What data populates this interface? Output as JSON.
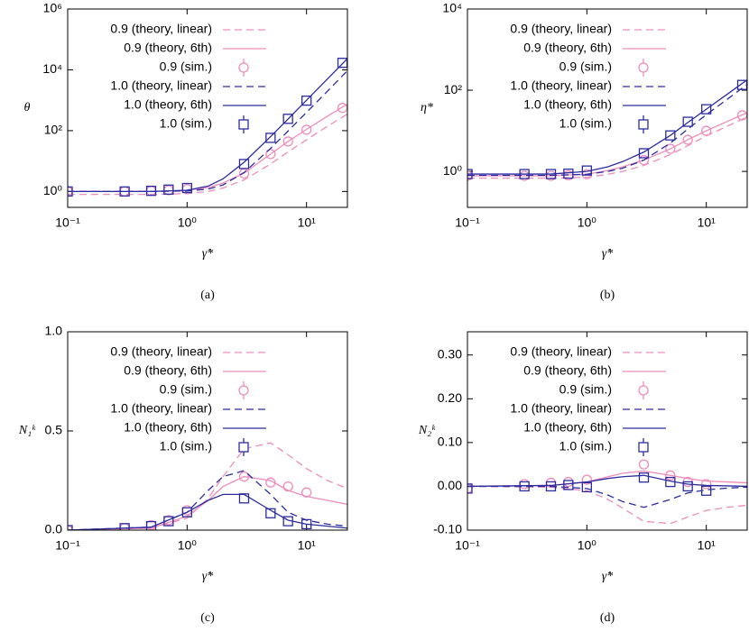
{
  "chart_data": [
    {
      "type": "line",
      "xlabel": "γ̇*",
      "ylabel": "θ",
      "caption": "(a)",
      "xscale": "log",
      "yscale": "log",
      "legend": "upper left",
      "xlim": [
        0.1,
        22
      ],
      "ylim": [
        0.3,
        1000000
      ],
      "xticks": [
        {
          "value": 0.1,
          "label": "10⁻¹"
        },
        {
          "value": 1,
          "label": "10⁰"
        },
        {
          "value": 10,
          "label": "10¹"
        }
      ],
      "yticks": [
        {
          "value": 1,
          "label": "10⁰"
        },
        {
          "value": 100,
          "label": "10²"
        },
        {
          "value": 10000,
          "label": "10⁴"
        },
        {
          "value": 1000000,
          "label": "10⁶"
        }
      ],
      "series": [
        {
          "name": "0.9 (theory, linear)",
          "color": "#ee8cba",
          "style": "dashed",
          "x": [
            0.1,
            0.5,
            1,
            1.5,
            2,
            3,
            5,
            7,
            10,
            15,
            22
          ],
          "values": [
            0.8,
            0.8,
            0.85,
            1.0,
            1.3,
            2.4,
            8,
            20,
            50,
            140,
            350
          ]
        },
        {
          "name": "0.9 (theory, 6th)",
          "color": "#ee8cba",
          "style": "solid",
          "x": [
            0.1,
            0.5,
            1,
            1.5,
            2,
            3,
            5,
            7,
            10,
            15,
            22
          ],
          "values": [
            1,
            1,
            1.1,
            1.35,
            1.9,
            4,
            17,
            44,
            110,
            300,
            750
          ]
        },
        {
          "name": "0.9 (sim.)",
          "color": "#ee8cba",
          "style": "circle",
          "x": [
            0.1,
            0.3,
            0.5,
            0.7,
            1,
            3,
            5,
            7,
            10,
            20
          ],
          "values": [
            1.0,
            1.0,
            1.05,
            1.1,
            1.2,
            3.9,
            17,
            44,
            107,
            560
          ]
        },
        {
          "name": "1.0 (theory, linear)",
          "color": "#2c2ca0",
          "style": "dashed",
          "x": [
            0.1,
            0.5,
            1,
            1.5,
            2,
            3,
            5,
            7,
            10,
            15,
            22
          ],
          "values": [
            1.0,
            1.0,
            1.04,
            1.2,
            1.64,
            4.2,
            26,
            97,
            401,
            2000,
            9370
          ]
        },
        {
          "name": "1.0 (theory, 6th)",
          "color": "#2c2ca0",
          "style": "solid",
          "x": [
            0.1,
            0.5,
            1,
            1.5,
            2,
            3,
            5,
            7,
            10,
            15,
            22
          ],
          "values": [
            1.0,
            1.0,
            1.1,
            1.5,
            2.6,
            9.1,
            63.5,
            241,
            1001,
            5064,
            23400
          ]
        },
        {
          "name": "1.0 (sim.)",
          "color": "#2c2ca0",
          "style": "square",
          "x": [
            0.1,
            0.3,
            0.5,
            0.7,
            1,
            3,
            5,
            7,
            10,
            20
          ],
          "values": [
            1.0,
            1.0,
            1.05,
            1.15,
            1.3,
            8,
            58,
            245,
            970,
            17000
          ]
        }
      ]
    },
    {
      "type": "line",
      "xlabel": "γ̇*",
      "ylabel": "η*",
      "caption": "(b)",
      "xscale": "log",
      "yscale": "log",
      "legend": "upper left",
      "xlim": [
        0.1,
        22
      ],
      "ylim": [
        0.13,
        10000
      ],
      "xticks": [
        {
          "value": 0.1,
          "label": "10⁻¹"
        },
        {
          "value": 1,
          "label": "10⁰"
        },
        {
          "value": 10,
          "label": "10¹"
        }
      ],
      "yticks": [
        {
          "value": 1,
          "label": "10⁰"
        },
        {
          "value": 100,
          "label": "10²"
        },
        {
          "value": 10000,
          "label": "10⁴"
        }
      ],
      "series": [
        {
          "name": "0.9 (theory, linear)",
          "color": "#ee8cba",
          "style": "dashed",
          "x": [
            0.1,
            0.5,
            1,
            1.5,
            2,
            3,
            5,
            7,
            10,
            15,
            22
          ],
          "values": [
            0.68,
            0.68,
            0.72,
            0.85,
            1.0,
            1.4,
            2.6,
            4.3,
            7.5,
            13,
            22
          ]
        },
        {
          "name": "0.9 (theory, 6th)",
          "color": "#ee8cba",
          "style": "solid",
          "x": [
            0.1,
            0.5,
            1,
            1.5,
            2,
            3,
            5,
            7,
            10,
            15,
            22
          ],
          "values": [
            0.78,
            0.78,
            0.85,
            1.05,
            1.3,
            1.9,
            3.6,
            6,
            10,
            17,
            28
          ]
        },
        {
          "name": "0.9 (sim.)",
          "color": "#ee8cba",
          "style": "circle",
          "x": [
            0.1,
            0.3,
            0.5,
            0.7,
            1,
            3,
            5,
            7,
            10,
            20
          ],
          "values": [
            0.78,
            0.78,
            0.78,
            0.8,
            0.85,
            1.9,
            3.6,
            6,
            10,
            24
          ]
        },
        {
          "name": "1.0 (theory, linear)",
          "color": "#2c2ca0",
          "style": "dashed",
          "x": [
            0.1,
            0.5,
            1,
            1.5,
            2,
            3,
            5,
            7,
            10,
            15,
            22
          ],
          "values": [
            0.8,
            0.8,
            0.85,
            1.0,
            1.2,
            1.9,
            5,
            11,
            25,
            60,
            140
          ]
        },
        {
          "name": "1.0 (theory, 6th)",
          "color": "#2c2ca0",
          "style": "solid",
          "x": [
            0.1,
            0.5,
            1,
            1.5,
            2,
            3,
            5,
            7,
            10,
            15,
            22
          ],
          "values": [
            0.86,
            0.86,
            1.0,
            1.3,
            1.75,
            3.0,
            7.7,
            16,
            34,
            80,
            180
          ]
        },
        {
          "name": "1.0 (sim.)",
          "color": "#2c2ca0",
          "style": "square",
          "x": [
            0.1,
            0.3,
            0.5,
            0.7,
            1,
            3,
            5,
            7,
            10,
            20
          ],
          "values": [
            0.86,
            0.86,
            0.86,
            0.88,
            1.05,
            2.8,
            7.7,
            16.7,
            34,
            135
          ]
        }
      ]
    },
    {
      "type": "line",
      "xlabel": "γ̇*",
      "ylabel": "N₁ᵏ",
      "caption": "(c)",
      "xscale": "log",
      "yscale": "linear",
      "legend": "upper left",
      "xlim": [
        0.1,
        22
      ],
      "ylim": [
        0,
        1
      ],
      "xticks": [
        {
          "value": 0.1,
          "label": "10⁻¹"
        },
        {
          "value": 1,
          "label": "10⁰"
        },
        {
          "value": 10,
          "label": "10¹"
        }
      ],
      "yticks": [
        {
          "value": 0,
          "label": "0.0"
        },
        {
          "value": 0.5,
          "label": "0.5"
        },
        {
          "value": 1,
          "label": "1.0"
        }
      ],
      "series": [
        {
          "name": "0.9 (theory, linear)",
          "color": "#ee8cba",
          "style": "dashed",
          "x": [
            0.1,
            0.5,
            1,
            1.5,
            2,
            3,
            5,
            7,
            10,
            15,
            22
          ],
          "values": [
            0,
            0.01,
            0.06,
            0.16,
            0.27,
            0.41,
            0.44,
            0.38,
            0.31,
            0.25,
            0.21
          ]
        },
        {
          "name": "0.9 (theory, 6th)",
          "color": "#ee8cba",
          "style": "solid",
          "x": [
            0.1,
            0.5,
            1,
            1.5,
            2,
            3,
            5,
            7,
            10,
            15,
            22
          ],
          "values": [
            0,
            0.01,
            0.07,
            0.15,
            0.22,
            0.27,
            0.25,
            0.2,
            0.17,
            0.15,
            0.13
          ]
        },
        {
          "name": "0.9 (sim.)",
          "color": "#ee8cba",
          "style": "circle",
          "x": [
            0.1,
            0.3,
            0.5,
            0.7,
            1,
            3,
            5,
            7,
            10
          ],
          "values": [
            0,
            0.01,
            0.025,
            0.05,
            0.1,
            0.27,
            0.24,
            0.22,
            0.19
          ]
        },
        {
          "name": "1.0 (theory, linear)",
          "color": "#2c2ca0",
          "style": "dashed",
          "x": [
            0.1,
            0.5,
            1,
            1.5,
            2,
            3,
            5,
            7,
            10,
            15,
            22
          ],
          "values": [
            0,
            0.015,
            0.09,
            0.2,
            0.27,
            0.3,
            0.18,
            0.09,
            0.05,
            0.03,
            0.02
          ]
        },
        {
          "name": "1.0 (theory, 6th)",
          "color": "#2c2ca0",
          "style": "solid",
          "x": [
            0.1,
            0.5,
            1,
            1.5,
            2,
            3,
            5,
            7,
            10,
            15,
            22
          ],
          "values": [
            0,
            0.015,
            0.09,
            0.15,
            0.18,
            0.18,
            0.1,
            0.05,
            0.03,
            0.02,
            0.01
          ]
        },
        {
          "name": "1.0 (sim.)",
          "color": "#2c2ca0",
          "style": "square",
          "x": [
            0.1,
            0.3,
            0.5,
            0.7,
            1,
            3,
            5,
            7,
            10
          ],
          "values": [
            0,
            0.01,
            0.02,
            0.045,
            0.09,
            0.16,
            0.085,
            0.045,
            0.03
          ]
        }
      ]
    },
    {
      "type": "line",
      "xlabel": "γ̇*",
      "ylabel": "N₂ᵏ",
      "caption": "(d)",
      "xscale": "log",
      "yscale": "linear",
      "legend": "upper left",
      "xlim": [
        0.1,
        22
      ],
      "ylim": [
        -0.1,
        0.353
      ],
      "xticks": [
        {
          "value": 0.1,
          "label": "10⁻¹"
        },
        {
          "value": 1,
          "label": "10⁰"
        },
        {
          "value": 10,
          "label": "10¹"
        }
      ],
      "yticks": [
        {
          "value": -0.1,
          "label": "-0.10"
        },
        {
          "value": 0,
          "label": "0.00"
        },
        {
          "value": 0.1,
          "label": "0.10"
        },
        {
          "value": 0.2,
          "label": "0.20"
        },
        {
          "value": 0.3,
          "label": "0.30"
        }
      ],
      "series": [
        {
          "name": "0.9 (theory, linear)",
          "color": "#ee8cba",
          "style": "dashed",
          "x": [
            0.1,
            0.5,
            1,
            1.5,
            2,
            3,
            5,
            7,
            10,
            15,
            22
          ],
          "values": [
            0,
            -0.002,
            -0.01,
            -0.03,
            -0.05,
            -0.08,
            -0.085,
            -0.07,
            -0.055,
            -0.048,
            -0.043
          ]
        },
        {
          "name": "0.9 (theory, 6th)",
          "color": "#ee8cba",
          "style": "solid",
          "x": [
            0.1,
            0.5,
            1,
            1.5,
            2,
            3,
            5,
            7,
            10,
            15,
            22
          ],
          "values": [
            0,
            0.002,
            0.01,
            0.022,
            0.03,
            0.035,
            0.025,
            0.018,
            0.012,
            0.01,
            0.008
          ]
        },
        {
          "name": "0.9 (sim.)",
          "color": "#ee8cba",
          "style": "circle",
          "x": [
            0.1,
            0.3,
            0.5,
            0.7,
            1,
            3,
            5,
            7,
            10
          ],
          "values": [
            -0.005,
            0.005,
            0.008,
            0.01,
            0.015,
            0.05,
            0.025,
            0.01,
            0.005
          ]
        },
        {
          "name": "1.0 (theory, linear)",
          "color": "#2c2ca0",
          "style": "dashed",
          "x": [
            0.1,
            0.5,
            1,
            1.5,
            2,
            3,
            5,
            7,
            10,
            15,
            22
          ],
          "values": [
            0,
            0,
            -0.005,
            -0.02,
            -0.035,
            -0.048,
            -0.03,
            -0.015,
            -0.008,
            -0.004,
            -0.002
          ]
        },
        {
          "name": "1.0 (theory, 6th)",
          "color": "#2c2ca0",
          "style": "solid",
          "x": [
            0.1,
            0.5,
            1,
            1.5,
            2,
            3,
            5,
            7,
            10,
            15,
            22
          ],
          "values": [
            0,
            0.002,
            0.01,
            0.018,
            0.022,
            0.025,
            0.012,
            0.005,
            0.002,
            0.001,
            0
          ]
        },
        {
          "name": "1.0 (sim.)",
          "color": "#2c2ca0",
          "style": "square",
          "x": [
            0.1,
            0.3,
            0.5,
            0.7,
            1,
            3,
            5,
            7,
            10
          ],
          "values": [
            -0.005,
            0,
            0,
            0.003,
            -0.002,
            0.02,
            0.01,
            0,
            -0.01
          ]
        }
      ]
    }
  ]
}
